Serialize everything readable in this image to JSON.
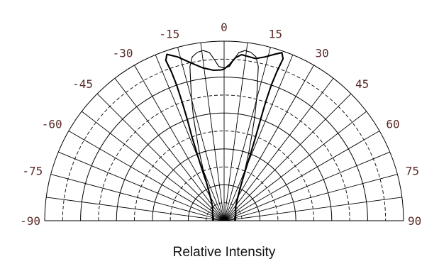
{
  "chart_data": {
    "type": "polar",
    "title": "",
    "caption": "Relative Intensity",
    "angle_range": [
      -90,
      90
    ],
    "angle_ticks": [
      -90,
      -75,
      -60,
      -45,
      -30,
      -15,
      0,
      15,
      30,
      45,
      60,
      75,
      90
    ],
    "angle_tick_labels": [
      "-90",
      "-75",
      "-60",
      "-45",
      "-30",
      "-15",
      "0",
      "15",
      "30",
      "45",
      "60",
      "75",
      "90"
    ],
    "radial_range": [
      0,
      1
    ],
    "radial_rings": [
      0.1,
      0.2,
      0.3,
      0.4,
      0.5,
      0.6,
      0.7,
      0.8,
      0.9,
      1.0
    ],
    "ring_styles": [
      "dashed",
      "solid",
      "dashed",
      "solid",
      "dashed",
      "solid",
      "dashed",
      "solid",
      "dashed",
      "solid"
    ],
    "radial_spokes_every_deg": 7.5,
    "colors": {
      "line": "#000000",
      "grid": "#000000",
      "labels": "#5a2a26"
    },
    "series": [
      {
        "style": "solid-bold",
        "points": [
          [
            -90,
            0.06
          ],
          [
            -80,
            0.06
          ],
          [
            -70,
            0.065
          ],
          [
            -60,
            0.075
          ],
          [
            -50,
            0.085
          ],
          [
            -45,
            0.09
          ],
          [
            -40,
            0.1
          ],
          [
            -35,
            0.12
          ],
          [
            -30,
            0.155
          ],
          [
            -27,
            0.19
          ],
          [
            -25,
            0.23
          ],
          [
            -23.5,
            0.3
          ],
          [
            -22,
            0.4
          ],
          [
            -21,
            0.5
          ],
          [
            -20,
            0.6
          ],
          [
            -19.5,
            0.7
          ],
          [
            -19.3,
            0.8
          ],
          [
            -19.5,
            0.88
          ],
          [
            -20,
            0.95
          ],
          [
            -19,
            0.98
          ],
          [
            -16,
            0.95
          ],
          [
            -12,
            0.9
          ],
          [
            -8,
            0.86
          ],
          [
            -4,
            0.84
          ],
          [
            -1,
            0.84
          ],
          [
            0,
            0.845
          ],
          [
            2,
            0.87
          ],
          [
            4,
            0.91
          ],
          [
            6,
            0.93
          ],
          [
            8,
            0.925
          ],
          [
            11,
            0.92
          ],
          [
            14,
            0.94
          ],
          [
            17,
            0.97
          ],
          [
            19,
            0.99
          ],
          [
            20,
            0.96
          ],
          [
            19.5,
            0.88
          ],
          [
            19.2,
            0.8
          ],
          [
            19.3,
            0.7
          ],
          [
            19.8,
            0.6
          ],
          [
            20.6,
            0.5
          ],
          [
            21.6,
            0.4
          ],
          [
            23,
            0.3
          ],
          [
            25,
            0.23
          ],
          [
            27,
            0.19
          ],
          [
            30,
            0.155
          ],
          [
            35,
            0.12
          ],
          [
            40,
            0.1
          ],
          [
            45,
            0.09
          ],
          [
            50,
            0.085
          ],
          [
            60,
            0.075
          ],
          [
            70,
            0.065
          ],
          [
            80,
            0.06
          ],
          [
            90,
            0.06
          ]
        ]
      },
      {
        "style": "solid-thin",
        "points": [
          [
            -90,
            0.065
          ],
          [
            -70,
            0.07
          ],
          [
            -50,
            0.085
          ],
          [
            -40,
            0.1
          ],
          [
            -32,
            0.13
          ],
          [
            -28,
            0.17
          ],
          [
            -25,
            0.22
          ],
          [
            -22.5,
            0.3
          ],
          [
            -20,
            0.4
          ],
          [
            -18,
            0.5
          ],
          [
            -16.5,
            0.6
          ],
          [
            -15,
            0.7
          ],
          [
            -13.5,
            0.8
          ],
          [
            -12.5,
            0.88
          ],
          [
            -11,
            0.93
          ],
          [
            -9,
            0.95
          ],
          [
            -7,
            0.955
          ],
          [
            -5,
            0.94
          ],
          [
            -3.5,
            0.9
          ],
          [
            -2,
            0.86
          ],
          [
            0,
            0.85
          ],
          [
            2,
            0.86
          ],
          [
            3.5,
            0.9
          ],
          [
            5,
            0.94
          ],
          [
            7,
            0.955
          ],
          [
            9,
            0.95
          ],
          [
            11,
            0.93
          ],
          [
            12.5,
            0.88
          ],
          [
            13.5,
            0.8
          ],
          [
            15,
            0.7
          ],
          [
            16.5,
            0.6
          ],
          [
            18,
            0.5
          ],
          [
            20,
            0.4
          ],
          [
            22.5,
            0.3
          ],
          [
            25,
            0.22
          ],
          [
            28,
            0.17
          ],
          [
            32,
            0.13
          ],
          [
            40,
            0.1
          ],
          [
            50,
            0.085
          ],
          [
            70,
            0.07
          ],
          [
            90,
            0.065
          ]
        ]
      }
    ]
  }
}
